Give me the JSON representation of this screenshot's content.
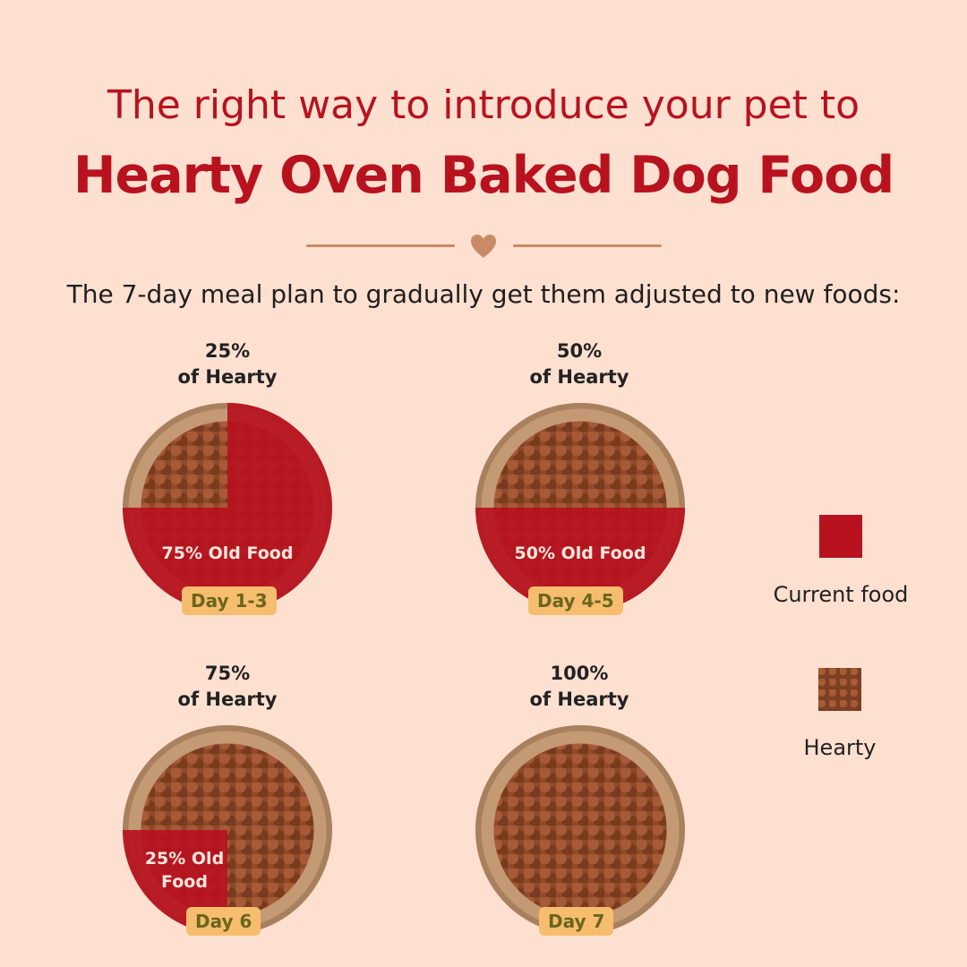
{
  "header": {
    "subtitle": "The right way to introduce your pet to",
    "title": "Hearty Oven Baked Dog Food",
    "divider_icon": "heart-icon",
    "intro": "The 7-day meal plan to gradually get them adjusted to new foods:"
  },
  "steps": [
    {
      "percent": "25%",
      "of": "of Hearty",
      "old_label": "75% Old Food",
      "day": "Day 1-3",
      "hearty_share": 25
    },
    {
      "percent": "50%",
      "of": "of Hearty",
      "old_label": "50% Old Food",
      "day": "Day 4-5",
      "hearty_share": 50
    },
    {
      "percent": "75%",
      "of": "of Hearty",
      "old_label_1": "25% Old",
      "old_label_2": "Food",
      "day": "Day 6",
      "hearty_share": 75
    },
    {
      "percent": "100%",
      "of": "of Hearty",
      "day": "Day 7",
      "hearty_share": 100
    }
  ],
  "legend": {
    "current": "Current food",
    "hearty": "Hearty"
  },
  "colors": {
    "brand_red": "#b8121f",
    "background": "#fde0d0",
    "badge": "#f7bd6e",
    "divider": "#c98a66"
  }
}
